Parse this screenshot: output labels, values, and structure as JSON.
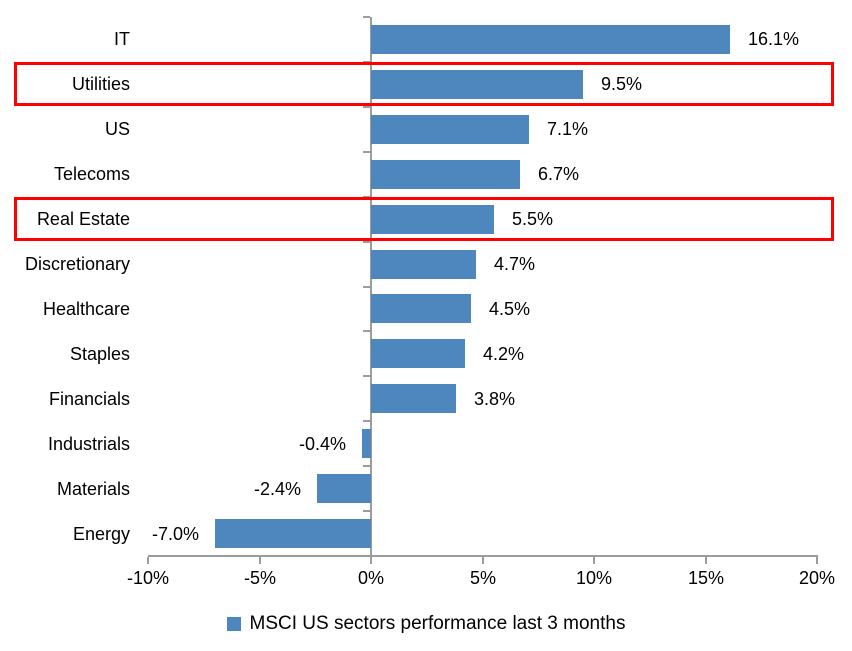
{
  "chart_data": {
    "type": "bar",
    "orientation": "horizontal",
    "categories": [
      "IT",
      "Utilities",
      "US",
      "Telecoms",
      "Real Estate",
      "Discretionary",
      "Healthcare",
      "Staples",
      "Financials",
      "Industrials",
      "Materials",
      "Energy"
    ],
    "values": [
      16.1,
      9.5,
      7.1,
      6.7,
      5.5,
      4.7,
      4.5,
      4.2,
      3.8,
      -0.4,
      -2.4,
      -7.0
    ],
    "data_labels": [
      "16.1%",
      "9.5%",
      "7.1%",
      "6.7%",
      "5.5%",
      "4.7%",
      "4.5%",
      "4.2%",
      "3.8%",
      "-0.4%",
      "-2.4%",
      "-7.0%"
    ],
    "x_tick_labels": [
      "-10%",
      "-5%",
      "0%",
      "5%",
      "10%",
      "15%",
      "20%"
    ],
    "x_tick_values": [
      -10,
      -5,
      0,
      5,
      10,
      15,
      20
    ],
    "x_range": [
      -10,
      20
    ],
    "grid": false,
    "legend": "MSCI US sectors performance last 3 months",
    "legend_position": "bottom-center",
    "bar_color": "#4e86be",
    "axis_color": "#9c9c9c",
    "highlight_color": "#ff0000",
    "highlighted_categories": [
      "Utilities",
      "Real Estate"
    ]
  }
}
